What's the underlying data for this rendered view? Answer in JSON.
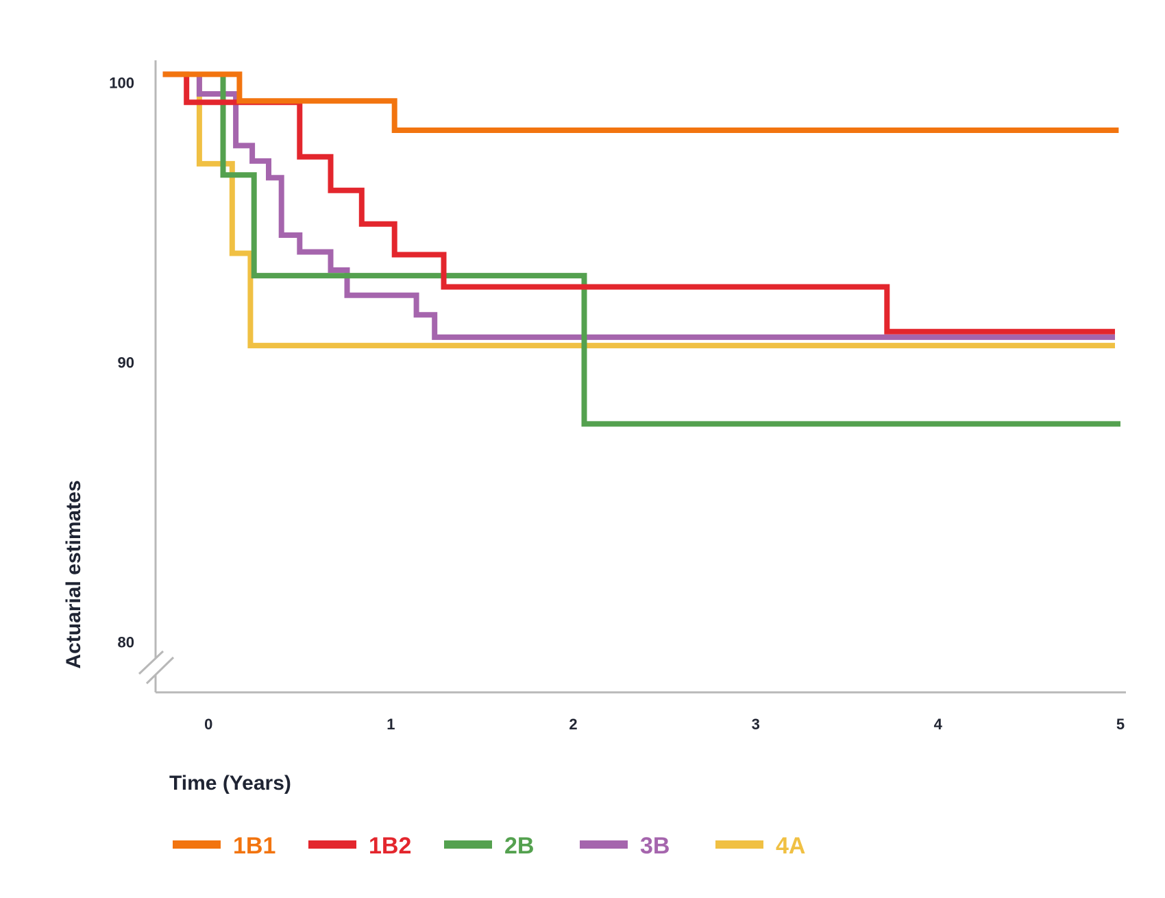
{
  "chart_data": {
    "type": "line",
    "step": true,
    "xlabel": "Time (Years)",
    "ylabel": "Actuarial estimates",
    "x_ticks": [
      0,
      1,
      2,
      3,
      4,
      5
    ],
    "y_ticks": [
      80,
      90,
      100
    ],
    "xlim": [
      -0.29,
      5.03
    ],
    "ylim": [
      78.2,
      100.8
    ],
    "y_axis_break": true,
    "grid": false,
    "legend_position": "bottom-left",
    "series": [
      {
        "name": "1B1",
        "color": "#f2740f",
        "points": [
          [
            -0.25,
            100.3
          ],
          [
            0.17,
            100.3
          ],
          [
            0.17,
            99.35
          ],
          [
            1.02,
            99.35
          ],
          [
            1.02,
            98.3
          ],
          [
            4.99,
            98.3
          ]
        ]
      },
      {
        "name": "1B2",
        "color": "#e3262d",
        "points": [
          [
            -0.25,
            100.3
          ],
          [
            -0.12,
            100.3
          ],
          [
            -0.12,
            99.3
          ],
          [
            0.5,
            99.3
          ],
          [
            0.5,
            97.35
          ],
          [
            0.67,
            97.35
          ],
          [
            0.67,
            96.15
          ],
          [
            0.84,
            96.15
          ],
          [
            0.84,
            94.95
          ],
          [
            1.02,
            94.95
          ],
          [
            1.02,
            93.85
          ],
          [
            1.29,
            93.85
          ],
          [
            1.29,
            92.7
          ],
          [
            3.72,
            92.7
          ],
          [
            3.72,
            91.1
          ],
          [
            4.97,
            91.1
          ]
        ]
      },
      {
        "name": "2B",
        "color": "#54a14f",
        "points": [
          [
            0.08,
            100.3
          ],
          [
            0.08,
            96.7
          ],
          [
            0.25,
            96.7
          ],
          [
            0.25,
            93.1
          ],
          [
            2.06,
            93.1
          ],
          [
            2.06,
            87.8
          ],
          [
            5.0,
            87.8
          ]
        ]
      },
      {
        "name": "3B",
        "color": "#a565ad",
        "points": [
          [
            -0.05,
            100.3
          ],
          [
            -0.05,
            99.6
          ],
          [
            0.15,
            99.6
          ],
          [
            0.15,
            97.75
          ],
          [
            0.24,
            97.75
          ],
          [
            0.24,
            97.2
          ],
          [
            0.33,
            97.2
          ],
          [
            0.33,
            96.6
          ],
          [
            0.4,
            96.6
          ],
          [
            0.4,
            94.55
          ],
          [
            0.5,
            94.55
          ],
          [
            0.5,
            93.95
          ],
          [
            0.67,
            93.95
          ],
          [
            0.67,
            93.3
          ],
          [
            0.76,
            93.3
          ],
          [
            0.76,
            92.4
          ],
          [
            1.14,
            92.4
          ],
          [
            1.14,
            91.7
          ],
          [
            1.24,
            91.7
          ],
          [
            1.24,
            90.9
          ],
          [
            4.97,
            90.9
          ]
        ]
      },
      {
        "name": "4A",
        "color": "#f0c043",
        "points": [
          [
            -0.05,
            100.3
          ],
          [
            -0.05,
            97.1
          ],
          [
            0.13,
            97.1
          ],
          [
            0.13,
            93.9
          ],
          [
            0.23,
            93.9
          ],
          [
            0.23,
            90.6
          ],
          [
            4.97,
            90.6
          ]
        ]
      }
    ]
  }
}
